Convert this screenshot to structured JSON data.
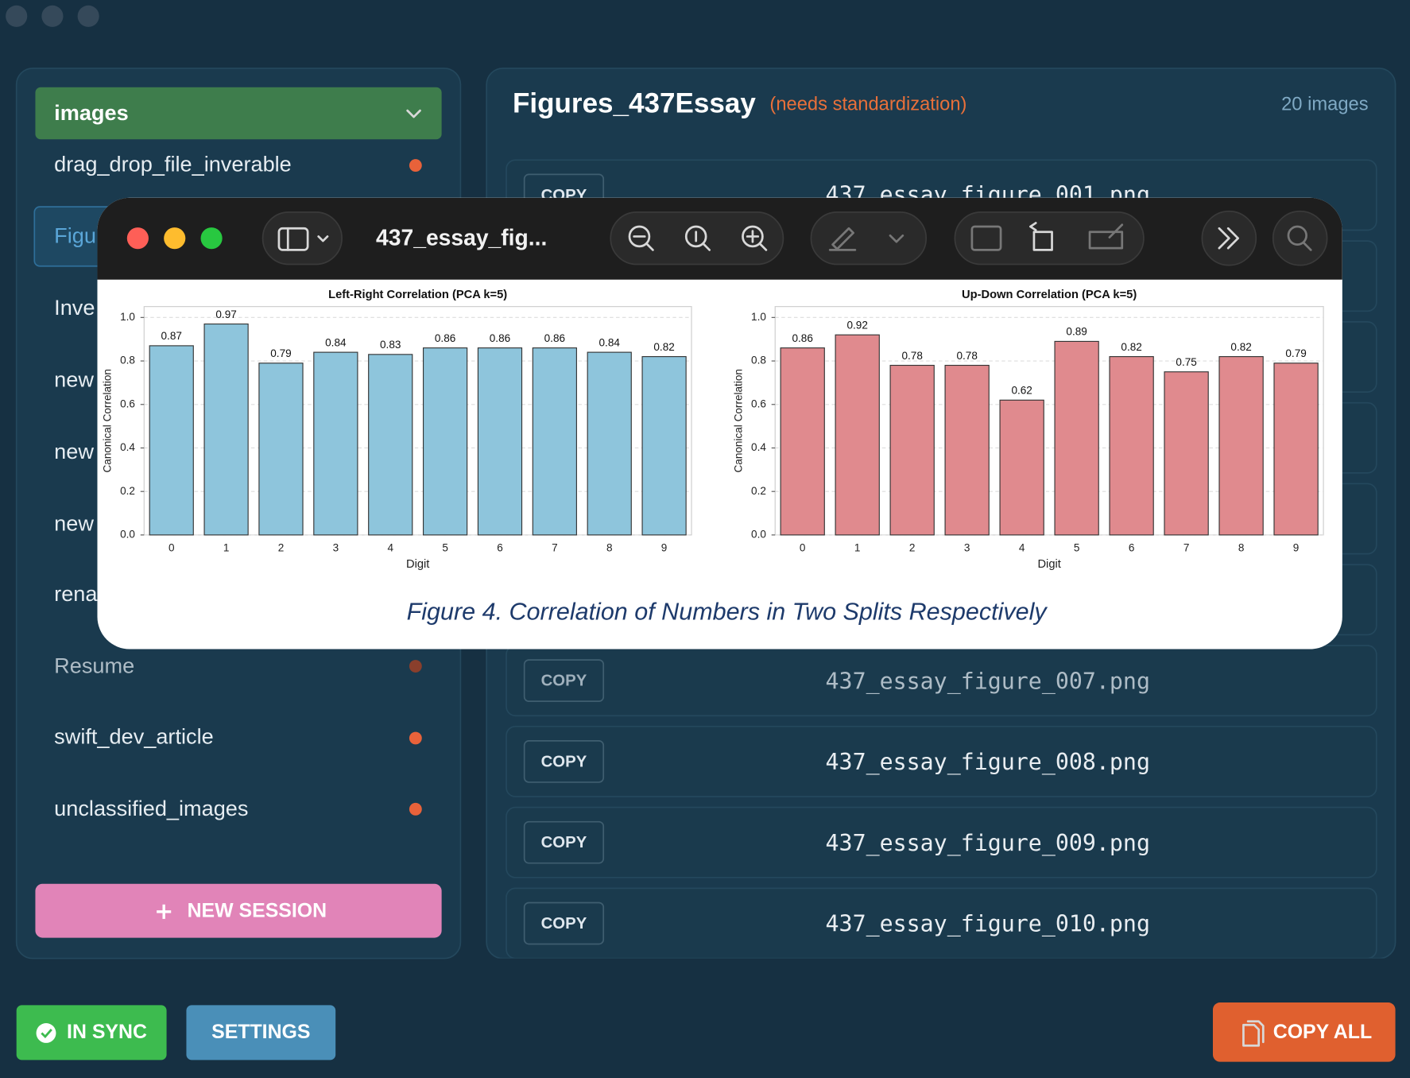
{
  "sidebar": {
    "dropdown": "images",
    "sessions": [
      "drag_drop_file_inverable",
      "Figu",
      "Inve",
      "new",
      "new",
      "new",
      "rena",
      "Resume",
      "swift_dev_article",
      "unclassified_images"
    ],
    "new_session": "NEW SESSION"
  },
  "header": {
    "title": "Figures_437Essay",
    "note": "(needs standardization)",
    "count": "20 images"
  },
  "files": [
    {
      "button": "COPY",
      "name": "437_essay_figure_001.png"
    },
    {
      "button": "COPY",
      "name": "437_essay_figure_007.png"
    },
    {
      "button": "COPY",
      "name": "437_essay_figure_008.png"
    },
    {
      "button": "COPY",
      "name": "437_essay_figure_009.png"
    },
    {
      "button": "COPY",
      "name": "437_essay_figure_010.png"
    }
  ],
  "footer": {
    "sync": "IN SYNC",
    "settings": "SETTINGS",
    "copy_all": "COPY ALL"
  },
  "preview": {
    "title": "437_essay_fig...",
    "caption": "Figure 4. Correlation of Numbers in Two Splits Respectively"
  },
  "chart_data": [
    {
      "type": "bar",
      "title": "Left-Right Correlation (PCA k=5)",
      "x_label": "Digit",
      "y_label": "Canonical Correlation",
      "categories": [
        "0",
        "1",
        "2",
        "3",
        "4",
        "5",
        "6",
        "7",
        "8",
        "9"
      ],
      "values": [
        0.87,
        0.97,
        0.79,
        0.84,
        0.83,
        0.86,
        0.86,
        0.86,
        0.84,
        0.82
      ],
      "color": "#8ec5dc",
      "ylim": [
        0,
        1.05
      ],
      "yticks": [
        {
          "value": 0,
          "label": "0.0"
        },
        0.2,
        0.4,
        0.6,
        0.8,
        {
          "value": 1,
          "label": "1.0"
        }
      ],
      "grid": true
    },
    {
      "type": "bar",
      "title": "Up-Down Correlation (PCA k=5)",
      "x_label": "Digit",
      "y_label": "Canonical Correlation",
      "categories": [
        "0",
        "1",
        "2",
        "3",
        "4",
        "5",
        "6",
        "7",
        "8",
        "9"
      ],
      "values": [
        0.86,
        0.92,
        0.78,
        0.78,
        0.62,
        0.89,
        0.82,
        0.75,
        0.82,
        0.79
      ],
      "color": "#e08a8e",
      "ylim": [
        0,
        1.05
      ],
      "yticks": [
        {
          "value": 0,
          "label": "0.0"
        },
        0.2,
        0.4,
        0.6,
        0.8,
        {
          "value": 1,
          "label": "1.0"
        }
      ],
      "grid": true
    }
  ]
}
